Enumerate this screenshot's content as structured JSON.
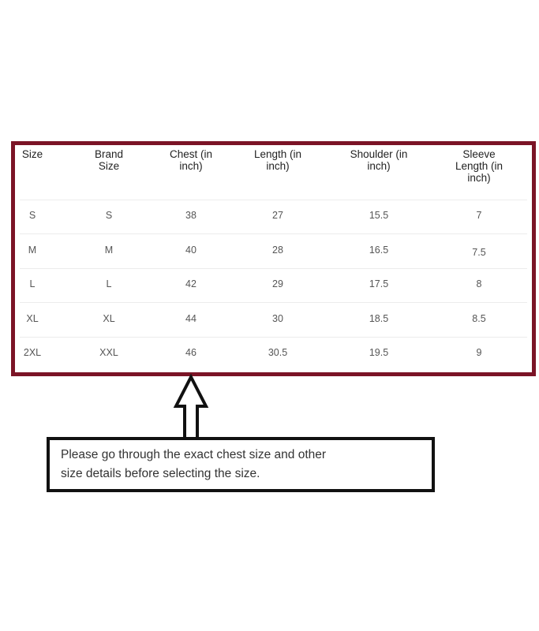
{
  "size_chart": {
    "headers": [
      [
        "Size"
      ],
      [
        "Brand",
        "Size"
      ],
      [
        "Chest (in",
        "inch)"
      ],
      [
        "Length (in",
        "inch)"
      ],
      [
        "Shoulder (in",
        "inch)"
      ],
      [
        "Sleeve",
        "Length (in",
        "inch)"
      ]
    ],
    "rows": [
      [
        "S",
        "S",
        "38",
        "27",
        "15.5",
        "7"
      ],
      [
        "M",
        "M",
        "40",
        "28",
        "16.5",
        "7.5"
      ],
      [
        "L",
        "L",
        "42",
        "29",
        "17.5",
        "8"
      ],
      [
        "XL",
        "XL",
        "44",
        "30",
        "18.5",
        "8.5"
      ],
      [
        "2XL",
        "XXL",
        "46",
        "30.5",
        "19.5",
        "9"
      ]
    ],
    "border_color": "#7b1426"
  },
  "arrow_icon": "up-arrow-outline",
  "note": {
    "lines": [
      "Please go through the exact chest size and other",
      "size details before selecting the size."
    ]
  }
}
